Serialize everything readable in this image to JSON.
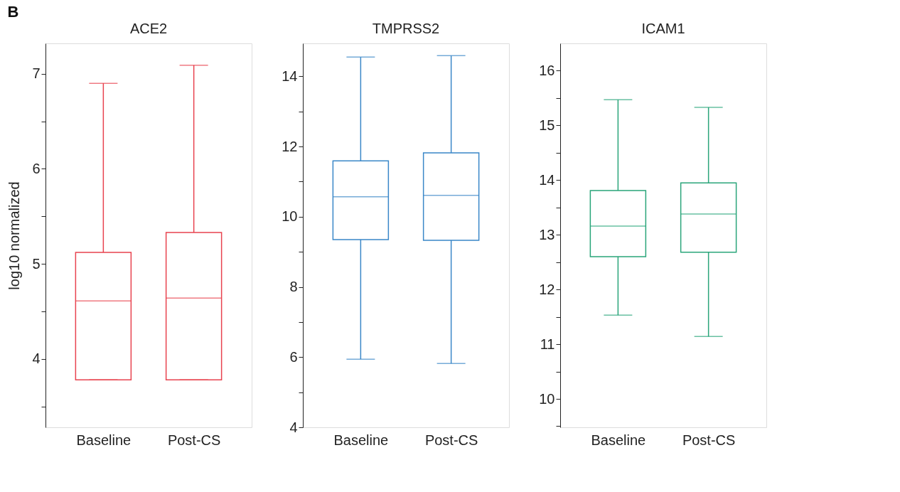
{
  "chart_data": [
    {
      "type": "box",
      "title": "ACE2",
      "ylabel": "log10 normalized",
      "annotations": [
        "B"
      ],
      "categories": [
        "Baseline",
        "Post-CS"
      ],
      "color": "#e8434f",
      "grid": false,
      "ylim": [
        3.28,
        7.32
      ],
      "yticks": [
        {
          "value": 3.5,
          "label": null
        },
        4,
        {
          "value": 4.5,
          "label": null
        },
        5,
        {
          "value": 5.5,
          "label": null
        },
        6,
        {
          "value": 6.5,
          "label": null
        },
        7
      ],
      "boxes": [
        {
          "low": 3.78,
          "q1": 3.78,
          "median": 4.61,
          "q3": 5.12,
          "high": 6.9
        },
        {
          "low": 3.78,
          "q1": 3.78,
          "median": 4.64,
          "q3": 5.33,
          "high": 7.09
        }
      ]
    },
    {
      "type": "box",
      "title": "TMPRSS2",
      "categories": [
        "Baseline",
        "Post-CS"
      ],
      "color": "#3a87c8",
      "grid": false,
      "ylim": [
        4,
        14.94
      ],
      "yticks": [
        4,
        {
          "value": 5,
          "label": null
        },
        6,
        {
          "value": 7,
          "label": null
        },
        8,
        {
          "value": 9,
          "label": null
        },
        10,
        {
          "value": 11,
          "label": null
        },
        12,
        {
          "value": 13,
          "label": null
        },
        14
      ],
      "boxes": [
        {
          "low": 5.94,
          "q1": 9.35,
          "median": 10.57,
          "q3": 11.59,
          "high": 14.55
        },
        {
          "low": 5.82,
          "q1": 9.33,
          "median": 10.61,
          "q3": 11.82,
          "high": 14.59
        }
      ]
    },
    {
      "type": "box",
      "title": "ICAM1",
      "categories": [
        "Baseline",
        "Post-CS"
      ],
      "color": "#2aa57a",
      "grid": false,
      "ylim": [
        9.48,
        16.5
      ],
      "yticks": [
        {
          "value": 9.5,
          "label": null
        },
        10,
        {
          "value": 10.5,
          "label": null
        },
        11,
        {
          "value": 11.5,
          "label": null
        },
        12,
        {
          "value": 12.5,
          "label": null
        },
        13,
        {
          "value": 13.5,
          "label": null
        },
        14,
        {
          "value": 14.5,
          "label": null
        },
        15,
        {
          "value": 15.5,
          "label": null
        },
        16
      ],
      "boxes": [
        {
          "low": 11.53,
          "q1": 12.6,
          "median": 13.16,
          "q3": 13.81,
          "high": 15.47
        },
        {
          "low": 11.14,
          "q1": 12.68,
          "median": 13.38,
          "q3": 13.95,
          "high": 15.33
        }
      ]
    }
  ]
}
